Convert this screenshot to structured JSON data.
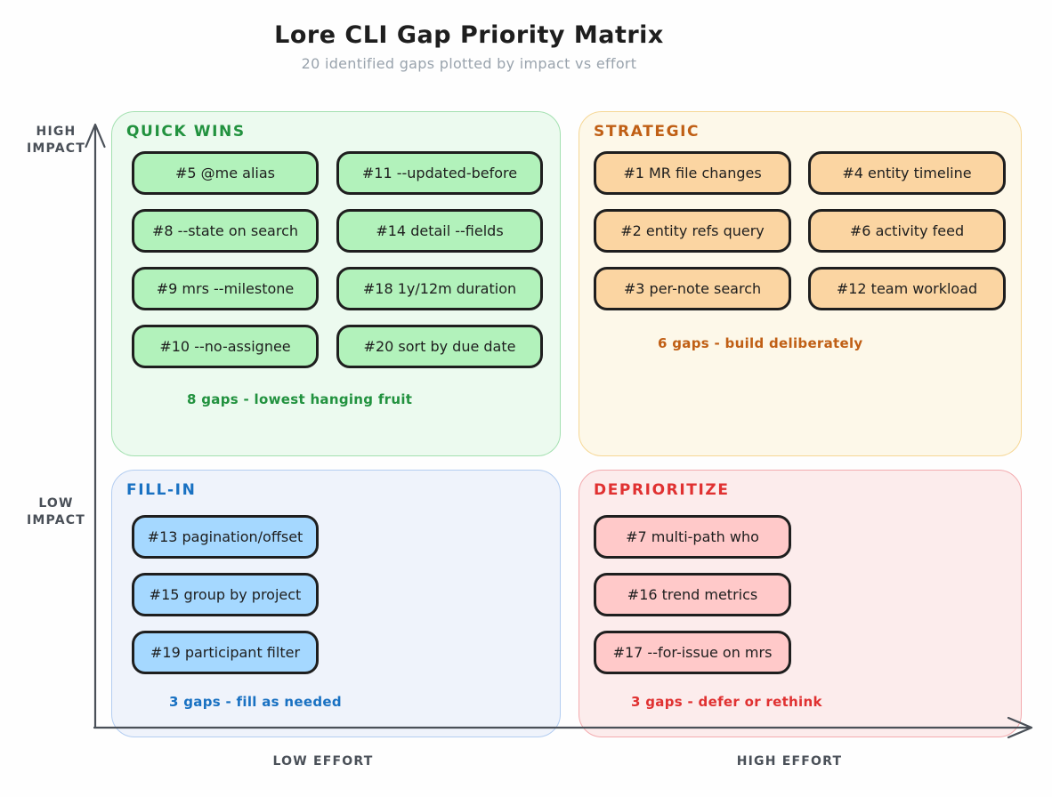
{
  "title": "Lore CLI Gap Priority Matrix",
  "subtitle": "20 identified gaps plotted by impact vs effort",
  "colors": {
    "axis": "#4a5058",
    "text": "#1e1e1e",
    "subtitle": "#99a3ad"
  },
  "axis": {
    "y_high": [
      "HIGH",
      "IMPACT"
    ],
    "y_low": [
      "LOW",
      "IMPACT"
    ],
    "x_low": "LOW EFFORT",
    "x_high": "HIGH EFFORT"
  },
  "quadrants": [
    {
      "id": "quick-wins",
      "label": "QUICK WINS",
      "caption": "8 gaps - lowest hanging fruit",
      "columns": 2,
      "colors": {
        "panel_bg": "#ecfaef",
        "panel_border": "#a3e0b0",
        "accent": "#22923f",
        "pill_bg": "#b2f2bb",
        "pill_border": "#1e1e1e"
      },
      "items": [
        "#5 @me alias",
        "#11 --updated-before",
        "#8 --state on search",
        "#14 detail --fields",
        "#9 mrs --milestone",
        "#18 1y/12m duration",
        "#10 --no-assignee",
        "#20 sort by due date"
      ]
    },
    {
      "id": "strategic",
      "label": "STRATEGIC",
      "caption": "6 gaps - build deliberately",
      "columns": 2,
      "colors": {
        "panel_bg": "#fdf8e9",
        "panel_border": "#f6d795",
        "accent": "#c05f15",
        "pill_bg": "#fbd5a2",
        "pill_border": "#1e1e1e"
      },
      "items": [
        "#1 MR file changes",
        "#4 entity timeline",
        "#2 entity refs query",
        "#6 activity feed",
        "#3 per-note search",
        "#12 team workload"
      ]
    },
    {
      "id": "fill-in",
      "label": "FILL-IN",
      "caption": "3 gaps - fill as needed",
      "columns": 1,
      "colors": {
        "panel_bg": "#eff3fb",
        "panel_border": "#b3cdf1",
        "accent": "#1971c2",
        "pill_bg": "#a5d8ff",
        "pill_border": "#1e1e1e"
      },
      "items": [
        "#13 pagination/offset",
        "#15 group by project",
        "#19 participant filter"
      ]
    },
    {
      "id": "deprioritize",
      "label": "DEPRIORITIZE",
      "caption": "3 gaps - defer or rethink",
      "columns": 1,
      "colors": {
        "panel_bg": "#fcecec",
        "panel_border": "#f3abaf",
        "accent": "#e03131",
        "pill_bg": "#ffc9c9",
        "pill_border": "#1e1e1e"
      },
      "items": [
        "#7 multi-path who",
        "#16 trend metrics",
        "#17 --for-issue on mrs"
      ]
    }
  ]
}
